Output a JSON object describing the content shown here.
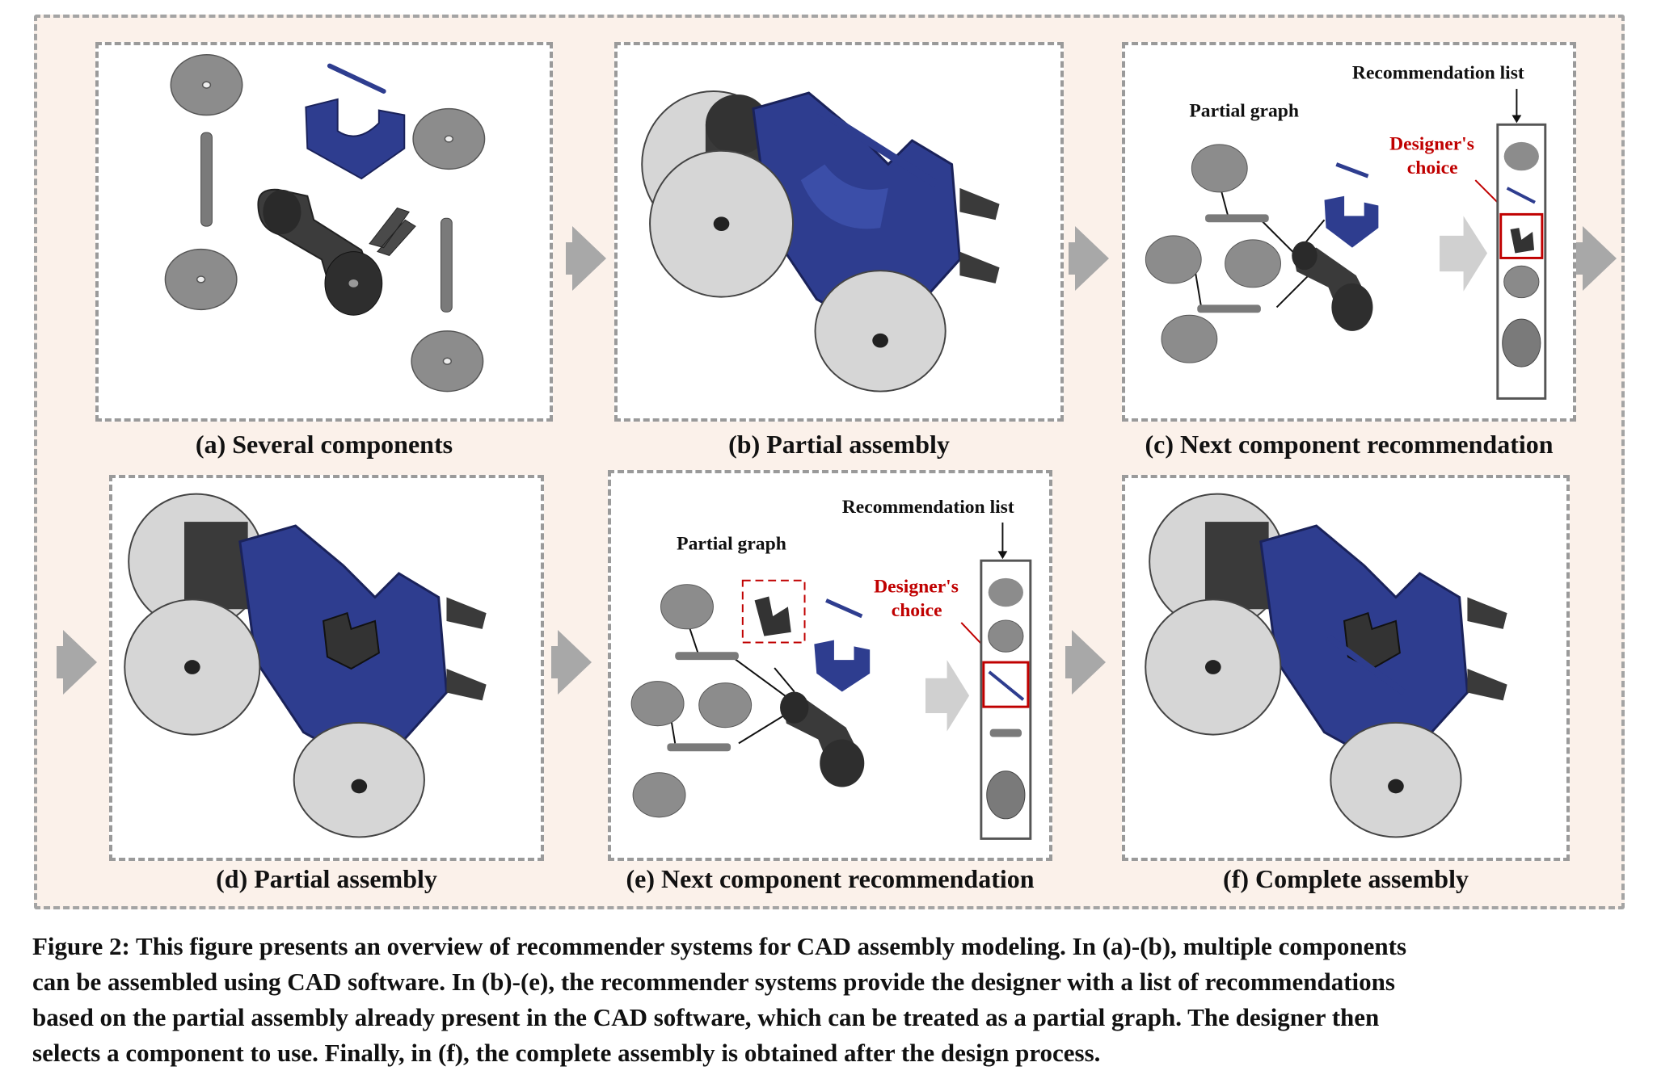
{
  "panels": [
    {
      "id": "a",
      "label": "(a) Several components"
    },
    {
      "id": "b",
      "label": "(b)  Partial assembly"
    },
    {
      "id": "c",
      "label": "(c) Next component recommendation"
    },
    {
      "id": "d",
      "label": "(d) Partial assembly"
    },
    {
      "id": "e",
      "label": "(e) Next component recommendation"
    },
    {
      "id": "f",
      "label": "(f) Complete assembly"
    }
  ],
  "annotations": {
    "partial_graph": "Partial graph",
    "recommendation_list": "Recommendation list",
    "designers_choice_line1": "Designer's",
    "designers_choice_line2": "choice"
  },
  "colors": {
    "blue_part": "#2e3d8f",
    "dark_part": "#3c3c3c",
    "light_disc": "#d9d9d9",
    "grey_disc": "#8a8a8a",
    "choice_red": "#c00000",
    "arrow_grey": "#a8a8a8"
  },
  "caption": {
    "line1": "Figure 2: This figure presents an overview of recommender systems for CAD assembly modeling. In (a)-(b), multiple components",
    "line2": "can be assembled using CAD software. In (b)-(e), the recommender systems provide the designer with a list of recommendations",
    "line3": "based on the partial assembly already present in the CAD software, which can be treated as a partial graph. The designer then",
    "line4": "selects a component to use. Finally, in (f), the complete assembly is obtained after the design process."
  }
}
